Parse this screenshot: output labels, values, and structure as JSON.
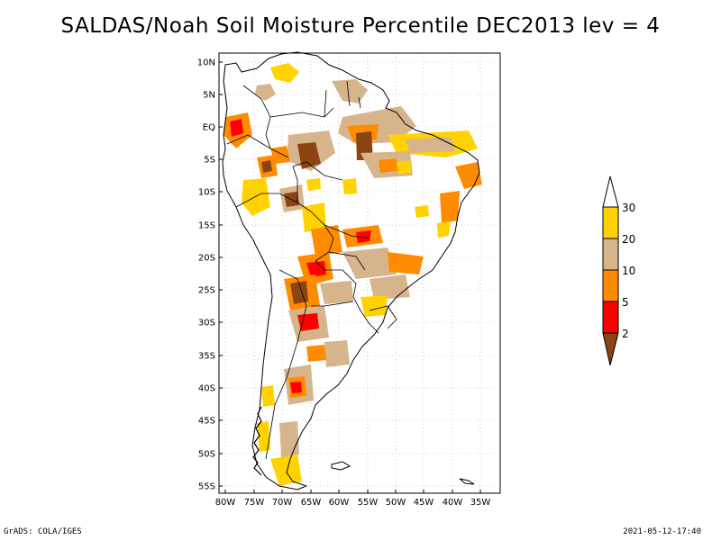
{
  "title": "SALDAS/Noah Soil Moisture Percentile DEC2013 lev = 4",
  "footer": {
    "left": "GrADS: COLA/IGES",
    "right": "2021-05-12-17:40"
  },
  "map": {
    "lat_labels": [
      "10N",
      "5N",
      "EQ",
      "5S",
      "10S",
      "15S",
      "20S",
      "25S",
      "30S",
      "35S",
      "40S",
      "45S",
      "50S",
      "55S"
    ],
    "lon_labels": [
      "80W",
      "75W",
      "70W",
      "65W",
      "60W",
      "55W",
      "50W",
      "45W",
      "40W",
      "35W"
    ],
    "lon_range": [
      -81,
      -33
    ],
    "lat_range": [
      -56,
      11
    ],
    "grid": true,
    "colors": {
      "coast": "#000000",
      "grid": "#aaaaaa",
      "frame": "#000000"
    }
  },
  "legend": {
    "placement": "right",
    "labels": [
      "30",
      "20",
      "10",
      "5",
      "2"
    ],
    "bins": [
      {
        "color": "#ffffff",
        "note": "above 30 (open arrow)"
      },
      {
        "color": "#ffd200",
        "range": "20-30"
      },
      {
        "color": "#d6b48c",
        "range": "10-20"
      },
      {
        "color": "#ff8c00",
        "range": "5-10"
      },
      {
        "color": "#ff0000",
        "range": "2-5"
      },
      {
        "color": "#8b4513",
        "note": "below 2 (arrow)"
      }
    ]
  }
}
